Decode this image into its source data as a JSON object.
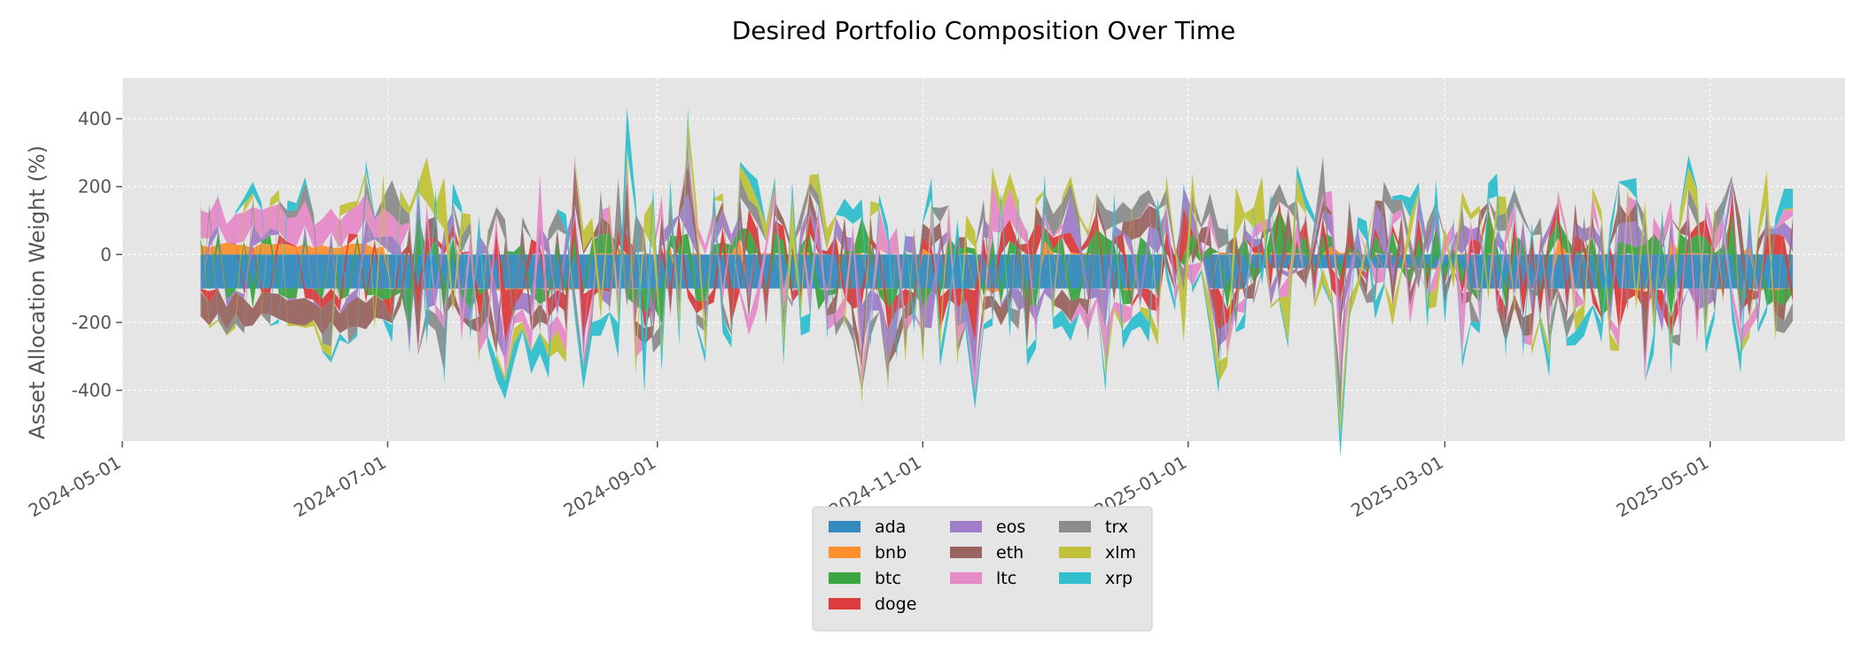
{
  "chart_data": {
    "type": "area",
    "stacked": true,
    "title": "Desired Portfolio Composition Over Time",
    "xlabel": "",
    "ylabel": "Asset Allocation Weight (%)",
    "xlim": [
      "2024-05-01",
      "2025-06-01"
    ],
    "ylim": [
      -550,
      520
    ],
    "x_ticks": [
      "2024-05-01",
      "2024-07-01",
      "2024-09-01",
      "2024-11-01",
      "2025-01-01",
      "2025-03-01",
      "2025-05-01"
    ],
    "y_ticks": [
      -400,
      -200,
      0,
      200,
      400
    ],
    "grid": true,
    "legend_position": "bottom-center",
    "date_range": {
      "start": "2024-05-19",
      "end": "2025-05-21",
      "step_days": 2
    },
    "series": [
      {
        "name": "ada",
        "color": "#348ABD",
        "values": []
      },
      {
        "name": "bnb",
        "color": "#FF8F2E",
        "values": []
      },
      {
        "name": "btc",
        "color": "#3BA640",
        "values": []
      },
      {
        "name": "doge",
        "color": "#DC3C3C",
        "values": []
      },
      {
        "name": "eos",
        "color": "#A07DC8",
        "values": []
      },
      {
        "name": "eth",
        "color": "#9A6560",
        "values": []
      },
      {
        "name": "ltc",
        "color": "#E78AC8",
        "values": []
      },
      {
        "name": "trx",
        "color": "#8C8C8C",
        "values": []
      },
      {
        "name": "xlm",
        "color": "#C2C23A",
        "values": []
      },
      {
        "name": "xrp",
        "color": "#2FBFCF",
        "values": []
      }
    ]
  }
}
